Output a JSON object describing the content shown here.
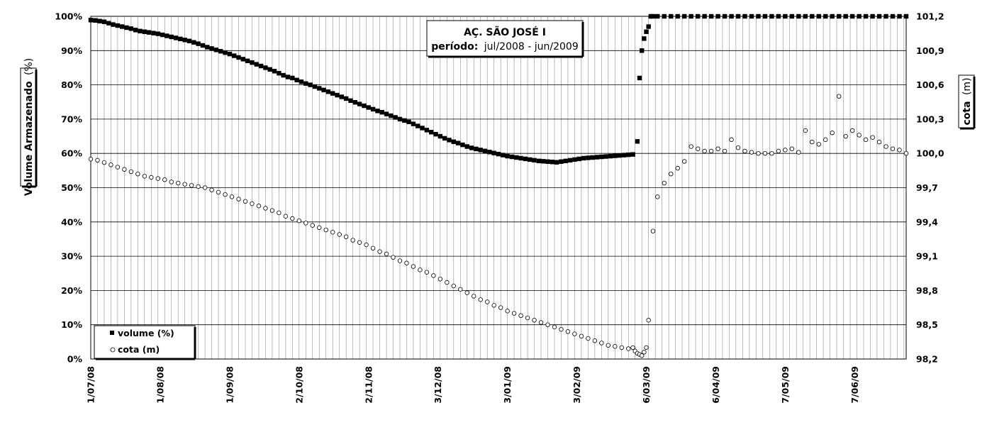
{
  "chart_data": {
    "type": "scatter",
    "title": "AÇ. SÃO JOSÉ I",
    "subtitle_label": "período:",
    "subtitle_value": "jul/2008 - jun/2009",
    "ylabel_left": "Volume Armazenado",
    "ylabel_left_unit": "(%)",
    "ylabel_right": "cota",
    "ylabel_right_unit": "(m)",
    "x_ticks": [
      "1/07/08",
      "1/08/08",
      "1/09/08",
      "2/10/08",
      "2/11/08",
      "3/12/08",
      "3/01/09",
      "3/02/09",
      "6/03/09",
      "6/04/09",
      "7/05/09",
      "7/06/09"
    ],
    "x_range": [
      "2008-07-01",
      "2009-06-30"
    ],
    "y_left_ticks": [
      "0%",
      "10%",
      "20%",
      "30%",
      "40%",
      "50%",
      "60%",
      "70%",
      "80%",
      "90%",
      "100%"
    ],
    "y_left_range": [
      0,
      100
    ],
    "y_right_ticks": [
      "98,2",
      "98,5",
      "98,8",
      "99,1",
      "99,4",
      "99,7",
      "100,0",
      "100,3",
      "100,6",
      "100,9",
      "101,2"
    ],
    "y_right_range": [
      98.2,
      101.2
    ],
    "grid": true,
    "legend_position": "bottom-left",
    "series": [
      {
        "name": "volume (%)",
        "axis": "left",
        "marker": "filled-square",
        "color": "#000000",
        "x": [
          "2008-07-01",
          "2008-07-03",
          "2008-07-05",
          "2008-07-07",
          "2008-07-09",
          "2008-07-11",
          "2008-07-13",
          "2008-07-15",
          "2008-07-17",
          "2008-07-19",
          "2008-07-21",
          "2008-07-23",
          "2008-07-25",
          "2008-07-27",
          "2008-07-29",
          "2008-07-31",
          "2008-08-02",
          "2008-08-04",
          "2008-08-06",
          "2008-08-08",
          "2008-08-10",
          "2008-08-12",
          "2008-08-14",
          "2008-08-16",
          "2008-08-18",
          "2008-08-20",
          "2008-08-22",
          "2008-08-24",
          "2008-08-26",
          "2008-08-28",
          "2008-08-30",
          "2008-09-01",
          "2008-09-03",
          "2008-09-05",
          "2008-09-07",
          "2008-09-09",
          "2008-09-11",
          "2008-09-13",
          "2008-09-15",
          "2008-09-17",
          "2008-09-19",
          "2008-09-21",
          "2008-09-23",
          "2008-09-25",
          "2008-09-27",
          "2008-09-29",
          "2008-10-01",
          "2008-10-03",
          "2008-10-05",
          "2008-10-07",
          "2008-10-09",
          "2008-10-11",
          "2008-10-13",
          "2008-10-15",
          "2008-10-17",
          "2008-10-19",
          "2008-10-21",
          "2008-10-23",
          "2008-10-25",
          "2008-10-27",
          "2008-10-29",
          "2008-10-31",
          "2008-11-02",
          "2008-11-04",
          "2008-11-06",
          "2008-11-08",
          "2008-11-10",
          "2008-11-12",
          "2008-11-14",
          "2008-11-16",
          "2008-11-18",
          "2008-11-20",
          "2008-11-22",
          "2008-11-24",
          "2008-11-26",
          "2008-11-28",
          "2008-11-30",
          "2008-12-02",
          "2008-12-04",
          "2008-12-06",
          "2008-12-08",
          "2008-12-10",
          "2008-12-12",
          "2008-12-14",
          "2008-12-16",
          "2008-12-18",
          "2008-12-20",
          "2008-12-22",
          "2008-12-24",
          "2008-12-26",
          "2008-12-28",
          "2008-12-30",
          "2009-01-01",
          "2009-01-03",
          "2009-01-05",
          "2009-01-07",
          "2009-01-09",
          "2009-01-11",
          "2009-01-13",
          "2009-01-15",
          "2009-01-17",
          "2009-01-19",
          "2009-01-21",
          "2009-01-23",
          "2009-01-25",
          "2009-01-27",
          "2009-01-29",
          "2009-01-31",
          "2009-02-02",
          "2009-02-04",
          "2009-02-06",
          "2009-02-08",
          "2009-02-10",
          "2009-02-12",
          "2009-02-14",
          "2009-02-16",
          "2009-02-18",
          "2009-02-20",
          "2009-02-22",
          "2009-02-24",
          "2009-02-26",
          "2009-02-28",
          "2009-03-02",
          "2009-03-03",
          "2009-03-04",
          "2009-03-05",
          "2009-03-06",
          "2009-03-07",
          "2009-03-08",
          "2009-03-09",
          "2009-03-11",
          "2009-03-14",
          "2009-03-17",
          "2009-03-20",
          "2009-03-23",
          "2009-03-26",
          "2009-03-29",
          "2009-04-01",
          "2009-04-04",
          "2009-04-07",
          "2009-04-10",
          "2009-04-13",
          "2009-04-16",
          "2009-04-19",
          "2009-04-22",
          "2009-04-25",
          "2009-04-28",
          "2009-05-01",
          "2009-05-04",
          "2009-05-07",
          "2009-05-10",
          "2009-05-13",
          "2009-05-16",
          "2009-05-19",
          "2009-05-22",
          "2009-05-25",
          "2009-05-28",
          "2009-05-31",
          "2009-06-03",
          "2009-06-06",
          "2009-06-09",
          "2009-06-12",
          "2009-06-15",
          "2009-06-18",
          "2009-06-21",
          "2009-06-24",
          "2009-06-27",
          "2009-06-30"
        ],
        "y": [
          98.9,
          98.8,
          98.6,
          98.4,
          98.0,
          97.6,
          97.3,
          97.0,
          96.7,
          96.4,
          96.0,
          95.7,
          95.5,
          95.3,
          95.1,
          94.9,
          94.6,
          94.3,
          94.0,
          93.7,
          93.4,
          93.1,
          92.8,
          92.4,
          92.0,
          91.5,
          91.0,
          90.6,
          90.2,
          89.8,
          89.4,
          89.0,
          88.5,
          88.0,
          87.5,
          87.0,
          86.5,
          86.0,
          85.5,
          85.0,
          84.5,
          84.0,
          83.4,
          82.8,
          82.3,
          82.0,
          81.4,
          80.9,
          80.4,
          80.0,
          79.5,
          79.0,
          78.5,
          78.0,
          77.5,
          77.0,
          76.5,
          76.0,
          75.4,
          74.9,
          74.4,
          73.9,
          73.4,
          72.9,
          72.4,
          72.0,
          71.5,
          71.0,
          70.5,
          70.0,
          69.6,
          69.2,
          68.6,
          68.0,
          67.4,
          66.8,
          66.2,
          65.6,
          65.0,
          64.4,
          63.9,
          63.4,
          63.0,
          62.5,
          62.0,
          61.6,
          61.3,
          61.0,
          60.7,
          60.4,
          60.1,
          59.8,
          59.5,
          59.2,
          59.0,
          58.8,
          58.6,
          58.4,
          58.2,
          58.0,
          57.8,
          57.7,
          57.6,
          57.5,
          57.4,
          57.6,
          57.8,
          58.0,
          58.2,
          58.4,
          58.6,
          58.7,
          58.8,
          58.9,
          59.0,
          59.1,
          59.2,
          59.3,
          59.4,
          59.5,
          59.6,
          59.7,
          63.5,
          82.0,
          90.0,
          93.5,
          95.5,
          97.0,
          100,
          100,
          100,
          100,
          100,
          100,
          100,
          100,
          100,
          100,
          100,
          100,
          100,
          100,
          100,
          100,
          100,
          100,
          100,
          100,
          100,
          100,
          100,
          100,
          100,
          100,
          100,
          100,
          100,
          100,
          100,
          100,
          100,
          100,
          100,
          100,
          100,
          100,
          100,
          100
        ]
      },
      {
        "name": "cota (m)",
        "axis": "right",
        "marker": "open-circle",
        "color": "#000000",
        "x": [
          "2008-07-01",
          "2008-07-04",
          "2008-07-07",
          "2008-07-10",
          "2008-07-13",
          "2008-07-16",
          "2008-07-19",
          "2008-07-22",
          "2008-07-25",
          "2008-07-28",
          "2008-07-31",
          "2008-08-03",
          "2008-08-06",
          "2008-08-09",
          "2008-08-12",
          "2008-08-15",
          "2008-08-18",
          "2008-08-21",
          "2008-08-24",
          "2008-08-27",
          "2008-08-30",
          "2008-09-02",
          "2008-09-05",
          "2008-09-08",
          "2008-09-11",
          "2008-09-14",
          "2008-09-17",
          "2008-09-20",
          "2008-09-23",
          "2008-09-26",
          "2008-09-29",
          "2008-10-02",
          "2008-10-05",
          "2008-10-08",
          "2008-10-11",
          "2008-10-14",
          "2008-10-17",
          "2008-10-20",
          "2008-10-23",
          "2008-10-26",
          "2008-10-29",
          "2008-11-01",
          "2008-11-04",
          "2008-11-07",
          "2008-11-10",
          "2008-11-13",
          "2008-11-16",
          "2008-11-19",
          "2008-11-22",
          "2008-11-25",
          "2008-11-28",
          "2008-12-01",
          "2008-12-04",
          "2008-12-07",
          "2008-12-10",
          "2008-12-13",
          "2008-12-16",
          "2008-12-19",
          "2008-12-22",
          "2008-12-25",
          "2008-12-28",
          "2008-12-31",
          "2009-01-03",
          "2009-01-06",
          "2009-01-09",
          "2009-01-12",
          "2009-01-15",
          "2009-01-18",
          "2009-01-21",
          "2009-01-24",
          "2009-01-27",
          "2009-01-30",
          "2009-02-02",
          "2009-02-05",
          "2009-02-08",
          "2009-02-11",
          "2009-02-14",
          "2009-02-17",
          "2009-02-20",
          "2009-02-23",
          "2009-02-26",
          "2009-02-28",
          "2009-03-01",
          "2009-03-02",
          "2009-03-03",
          "2009-03-04",
          "2009-03-05",
          "2009-03-06",
          "2009-03-07",
          "2009-03-09",
          "2009-03-11",
          "2009-03-14",
          "2009-03-17",
          "2009-03-20",
          "2009-03-23",
          "2009-03-26",
          "2009-03-29",
          "2009-04-01",
          "2009-04-04",
          "2009-04-07",
          "2009-04-10",
          "2009-04-13",
          "2009-04-16",
          "2009-04-19",
          "2009-04-22",
          "2009-04-25",
          "2009-04-28",
          "2009-05-01",
          "2009-05-04",
          "2009-05-07",
          "2009-05-10",
          "2009-05-13",
          "2009-05-16",
          "2009-05-19",
          "2009-05-22",
          "2009-05-25",
          "2009-05-28",
          "2009-05-31",
          "2009-06-03",
          "2009-06-06",
          "2009-06-09",
          "2009-06-12",
          "2009-06-15",
          "2009-06-18",
          "2009-06-21",
          "2009-06-24",
          "2009-06-27",
          "2009-06-30"
        ],
        "y": [
          99.95,
          99.94,
          99.92,
          99.9,
          99.88,
          99.86,
          99.84,
          99.82,
          99.8,
          99.79,
          99.78,
          99.77,
          99.75,
          99.74,
          99.73,
          99.72,
          99.71,
          99.7,
          99.68,
          99.66,
          99.64,
          99.62,
          99.6,
          99.58,
          99.56,
          99.54,
          99.52,
          99.5,
          99.48,
          99.45,
          99.43,
          99.41,
          99.39,
          99.37,
          99.35,
          99.33,
          99.31,
          99.29,
          99.27,
          99.24,
          99.22,
          99.2,
          99.17,
          99.14,
          99.12,
          99.09,
          99.06,
          99.04,
          99.01,
          98.98,
          98.96,
          98.93,
          98.9,
          98.87,
          98.84,
          98.81,
          98.78,
          98.75,
          98.72,
          98.7,
          98.67,
          98.65,
          98.62,
          98.6,
          98.58,
          98.56,
          98.54,
          98.52,
          98.5,
          98.48,
          98.46,
          98.44,
          98.42,
          98.4,
          98.38,
          98.36,
          98.34,
          98.32,
          98.31,
          98.3,
          98.29,
          98.3,
          98.27,
          98.25,
          98.24,
          98.23,
          98.26,
          98.3,
          98.54,
          99.32,
          99.62,
          99.74,
          99.82,
          99.87,
          99.93,
          100.06,
          100.04,
          100.02,
          100.02,
          100.04,
          100.02,
          100.12,
          100.05,
          100.02,
          100.01,
          100.0,
          100.0,
          100.0,
          100.02,
          100.03,
          100.04,
          100.01,
          100.2,
          100.1,
          100.08,
          100.12,
          100.18,
          100.5,
          100.15,
          100.2,
          100.16,
          100.12,
          100.14,
          100.1,
          100.06,
          100.04,
          100.03,
          100.0
        ]
      }
    ]
  }
}
